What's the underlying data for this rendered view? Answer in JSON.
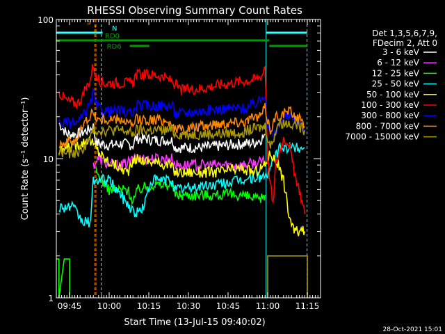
{
  "chart_data": {
    "type": "line",
    "title": "RHESSI Observing Summary Count Rates",
    "xlabel": "Start Time (13-Jul-15 09:40:02)",
    "ylabel": "Count Rate (s⁻¹ detector⁻¹)",
    "yscale": "log",
    "ylim": [
      1,
      100
    ],
    "xlim_minutes": [
      0,
      100
    ],
    "x_ticks": [
      {
        "label": "09:45",
        "t": 5
      },
      {
        "label": "10:00",
        "t": 20
      },
      {
        "label": "10:15",
        "t": 35
      },
      {
        "label": "10:30",
        "t": 50
      },
      {
        "label": "10:45",
        "t": 65
      },
      {
        "label": "11:00",
        "t": 80
      },
      {
        "label": "11:15",
        "t": 95
      }
    ],
    "y_ticks": [
      {
        "label": "1",
        "v": 1
      },
      {
        "label": "10",
        "v": 10
      },
      {
        "label": "100",
        "v": 100
      }
    ],
    "legend_header": [
      "Det 1,3,5,6,7,9,",
      "FDecim 2, Att 0"
    ],
    "legend_placement": "right",
    "series": [
      {
        "name": "3 - 6 keV",
        "color": "#ffffff",
        "points": [
          [
            1,
            18
          ],
          [
            4,
            15
          ],
          [
            8,
            15
          ],
          [
            12,
            16
          ],
          [
            14,
            17
          ],
          [
            15,
            13
          ],
          [
            20,
            12.5
          ],
          [
            25,
            12.8
          ],
          [
            29,
            12.5
          ],
          [
            30,
            14
          ],
          [
            40,
            13.5
          ],
          [
            44,
            13.5
          ],
          [
            45,
            12
          ],
          [
            55,
            12
          ],
          [
            65,
            12.5
          ],
          [
            75,
            13
          ],
          [
            78,
            14
          ],
          [
            79,
            15
          ]
        ]
      },
      {
        "name": "6 - 12 keV",
        "color": "#ff33ff",
        "points": [
          [
            14,
            9
          ],
          [
            16,
            10
          ],
          [
            20,
            9
          ],
          [
            25,
            9
          ],
          [
            30,
            10
          ],
          [
            44,
            10
          ],
          [
            45,
            9
          ],
          [
            60,
            9
          ],
          [
            70,
            9
          ],
          [
            79,
            9.5
          ]
        ]
      },
      {
        "name": "12 - 25 keV",
        "color": "#00ff00",
        "points": [
          [
            15,
            8
          ],
          [
            20,
            6
          ],
          [
            27,
            6
          ],
          [
            29,
            5
          ],
          [
            31,
            6
          ],
          [
            36,
            6.5
          ],
          [
            44,
            6.5
          ],
          [
            45,
            5.5
          ],
          [
            60,
            5.5
          ],
          [
            70,
            5.5
          ],
          [
            77,
            5
          ],
          [
            79,
            5.5
          ]
        ]
      },
      {
        "name": "25 - 50 keV",
        "color": "#00ffff",
        "points": [
          [
            1,
            4.5
          ],
          [
            6,
            4.5
          ],
          [
            10,
            3.5
          ],
          [
            13,
            3.5
          ],
          [
            14,
            7
          ],
          [
            20,
            7
          ],
          [
            30,
            4
          ],
          [
            33,
            4.5
          ],
          [
            36,
            7
          ],
          [
            44,
            7
          ],
          [
            45,
            6
          ],
          [
            60,
            6.5
          ],
          [
            70,
            7
          ],
          [
            79,
            7.5
          ],
          [
            81,
            8
          ],
          [
            82,
            10
          ],
          [
            85,
            12
          ],
          [
            90,
            12
          ],
          [
            94,
            12
          ]
        ]
      },
      {
        "name": "50 - 100 keV",
        "color": "#ffff00",
        "points": [
          [
            1,
            11
          ],
          [
            4,
            12
          ],
          [
            10,
            13
          ],
          [
            12,
            14
          ],
          [
            15,
            12
          ],
          [
            18,
            10
          ],
          [
            27,
            8
          ],
          [
            30,
            10
          ],
          [
            43,
            9
          ],
          [
            45,
            8
          ],
          [
            60,
            8
          ],
          [
            70,
            8.5
          ],
          [
            75,
            8
          ],
          [
            79,
            9
          ],
          [
            81,
            11
          ],
          [
            84,
            9
          ],
          [
            86,
            7
          ],
          [
            88,
            4
          ],
          [
            90,
            3
          ],
          [
            93,
            3
          ],
          [
            94,
            3
          ]
        ]
      },
      {
        "name": "100 - 300 keV",
        "color": "#ff0000",
        "points": [
          [
            1,
            30
          ],
          [
            4,
            26
          ],
          [
            8,
            25
          ],
          [
            10,
            28
          ],
          [
            13,
            38
          ],
          [
            14,
            48
          ],
          [
            15,
            38
          ],
          [
            18,
            35
          ],
          [
            25,
            35
          ],
          [
            29,
            35
          ],
          [
            30,
            40
          ],
          [
            38,
            40
          ],
          [
            44,
            36
          ],
          [
            47,
            31
          ],
          [
            55,
            32
          ],
          [
            62,
            34
          ],
          [
            70,
            36
          ],
          [
            75,
            37
          ],
          [
            78,
            40
          ],
          [
            79,
            48
          ],
          [
            80,
            10
          ],
          [
            82,
            4.5
          ],
          [
            83,
            9
          ],
          [
            86,
            14
          ],
          [
            88,
            13
          ],
          [
            90,
            8
          ],
          [
            92,
            6
          ],
          [
            94,
            4
          ]
        ]
      },
      {
        "name": "300 - 800 keV",
        "color": "#0000ff",
        "points": [
          [
            1,
            18
          ],
          [
            4,
            18
          ],
          [
            8,
            18
          ],
          [
            10,
            20
          ],
          [
            13,
            25
          ],
          [
            14,
            30
          ],
          [
            15,
            24
          ],
          [
            18,
            22
          ],
          [
            25,
            22
          ],
          [
            29,
            21
          ],
          [
            30,
            24
          ],
          [
            40,
            24
          ],
          [
            44,
            24
          ],
          [
            45,
            21
          ],
          [
            55,
            22
          ],
          [
            65,
            23
          ],
          [
            72,
            23
          ],
          [
            77,
            26
          ],
          [
            79,
            30
          ],
          [
            80,
            18
          ],
          [
            82,
            14
          ],
          [
            86,
            20
          ],
          [
            90,
            20
          ],
          [
            92,
            18
          ],
          [
            94,
            16
          ]
        ]
      },
      {
        "name": "800 - 7000 keV",
        "color": "#ff8800",
        "points": [
          [
            1,
            13
          ],
          [
            4,
            13
          ],
          [
            8,
            14
          ],
          [
            10,
            17
          ],
          [
            13,
            21
          ],
          [
            14,
            21
          ],
          [
            16,
            19
          ],
          [
            25,
            19
          ],
          [
            29,
            17
          ],
          [
            30,
            19
          ],
          [
            40,
            19
          ],
          [
            44,
            18
          ],
          [
            45,
            16
          ],
          [
            55,
            17
          ],
          [
            62,
            18
          ],
          [
            70,
            18.5
          ],
          [
            77,
            20
          ],
          [
            79,
            23
          ],
          [
            81,
            16
          ],
          [
            83,
            20
          ],
          [
            88,
            22
          ],
          [
            91,
            20
          ],
          [
            94,
            17
          ]
        ]
      },
      {
        "name": "7000 - 15000 keV",
        "color": "#aa9900",
        "points": [
          [
            1,
            11
          ],
          [
            4,
            11
          ],
          [
            8,
            11
          ],
          [
            12,
            13
          ],
          [
            14,
            16
          ],
          [
            16,
            16
          ],
          [
            25,
            16
          ],
          [
            29,
            15
          ],
          [
            30,
            16
          ],
          [
            44,
            16
          ],
          [
            45,
            15
          ],
          [
            60,
            15
          ],
          [
            70,
            15.5
          ],
          [
            79,
            17
          ],
          [
            81,
            12
          ],
          [
            84,
            18
          ],
          [
            90,
            18
          ],
          [
            94,
            16
          ]
        ]
      }
    ],
    "flat_segments": [
      {
        "series": "12 - 25 keV",
        "points": [
          [
            0,
            1.9
          ],
          [
            1,
            1.9
          ],
          [
            1,
            1
          ],
          [
            3,
            1.9
          ],
          [
            5,
            1.9
          ],
          [
            5,
            1
          ]
        ]
      },
      {
        "series": "7000 - 15000 keV",
        "points": [
          [
            80,
            1
          ],
          [
            80,
            2
          ],
          [
            95,
            2
          ],
          [
            95,
            1
          ]
        ]
      }
    ],
    "vertical_markers": [
      {
        "t": 14.6,
        "style": "dashed",
        "color": "#ff8800"
      },
      {
        "t": 15.0,
        "style": "dashed",
        "color": "#ff8800"
      },
      {
        "t": 0.0,
        "style": "solid",
        "color": "#33ffff"
      },
      {
        "t": 79.4,
        "style": "solid",
        "color": "#33ffff"
      },
      {
        "t": 94.9,
        "style": "dashed",
        "color": "#33ffff"
      },
      {
        "t": 17.0,
        "style": "dashed",
        "color": "#33ffff"
      }
    ],
    "state_bars": [
      {
        "label": "S",
        "color": "#ff8800",
        "t0": 14.6,
        "t1": 15.0,
        "row": 0
      },
      {
        "label": "N",
        "color": "#33ffff",
        "t0": 0,
        "t1": 17.5,
        "row": 1
      },
      {
        "label": "",
        "color": "#33ffff",
        "t0": 79.4,
        "t1": 94.9,
        "row": 1
      },
      {
        "label": "RD0",
        "color": "#009900",
        "t0": 0,
        "t1": 80.6,
        "row": 2
      },
      {
        "label": "",
        "color": "#009900",
        "t0": 80.6,
        "t1": 94.9,
        "row": 3
      },
      {
        "label": "RD6",
        "color": "#009900",
        "t0": 27.8,
        "t1": 35.2,
        "row": 3
      }
    ],
    "footer_date": "28-Oct-2021 15:01"
  }
}
